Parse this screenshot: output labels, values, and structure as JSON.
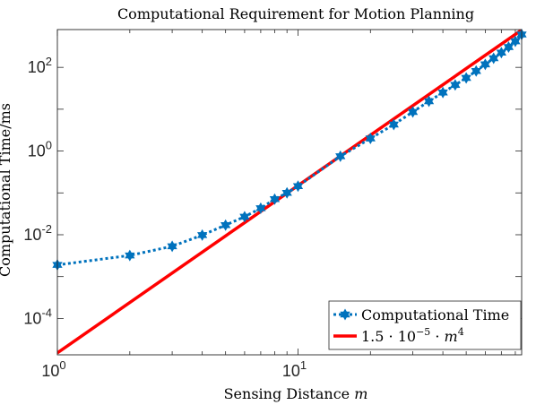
{
  "chart_data": {
    "type": "line",
    "title": "Computational Requirement for Motion Planning",
    "xlabel": "Sensing Distance",
    "xlabel_symbol": "m",
    "ylabel": "Computational Time/ms",
    "xscale": "log",
    "yscale": "log",
    "xlim": [
      1,
      85
    ],
    "ylim": [
      1.35e-05,
      800
    ],
    "xticks": [
      {
        "value": 1,
        "base": "10",
        "exp": "0"
      },
      {
        "value": 10,
        "base": "10",
        "exp": "1"
      }
    ],
    "yticks": [
      {
        "value": 0.0001,
        "base": "10",
        "exp": "-4"
      },
      {
        "value": 0.01,
        "base": "10",
        "exp": "-2"
      },
      {
        "value": 1,
        "base": "10",
        "exp": "0"
      },
      {
        "value": 100,
        "base": "10",
        "exp": "2"
      }
    ],
    "grid": false,
    "legend": "bottom-right",
    "series": [
      {
        "name": "Computational Time",
        "color": "#0072BD",
        "style": "dotted",
        "marker": "hexagram",
        "x": [
          1,
          2,
          3,
          4,
          5,
          6,
          7,
          8,
          9,
          10,
          15,
          20,
          25,
          30,
          35,
          40,
          45,
          50,
          55,
          60,
          65,
          70,
          75,
          80,
          85
        ],
        "y": [
          0.0019,
          0.0032,
          0.0053,
          0.0098,
          0.017,
          0.027,
          0.043,
          0.071,
          0.1,
          0.145,
          0.75,
          2.0,
          4.3,
          8.6,
          15.5,
          25,
          38,
          56,
          82,
          118,
          165,
          225,
          305,
          420,
          610
        ]
      },
      {
        "name": "1.5 · 10^-5 · m^4",
        "legend_parts": {
          "a": "1.5 · 10",
          "exp": "−5",
          "b": " · ",
          "var": "m",
          "pow": "4"
        },
        "color": "#FF0000",
        "style": "solid",
        "marker": "none",
        "formula": {
          "coefficient": 1.5e-05,
          "exponent": 4
        },
        "x": [
          1,
          85
        ]
      }
    ]
  }
}
